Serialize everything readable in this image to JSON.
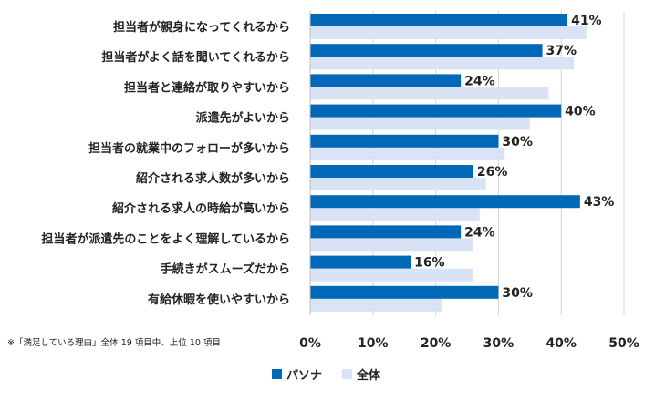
{
  "chart_data": {
    "type": "bar",
    "orientation": "horizontal",
    "categories": [
      "担当者が親身になってくれるから",
      "担当者がよく話を聞いてくれるから",
      "担当者と連絡が取りやすいから",
      "派遣先がよいから",
      "担当者の就業中のフォローが多いから",
      "紹介される求人数が多いから",
      "紹介される求人の時給が高いから",
      "担当者が派遣先のことをよく理解しているから",
      "手続きがスムーズだから",
      "有給休暇を使いやすいから"
    ],
    "series": [
      {
        "name": "パソナ",
        "color": "#0068b7",
        "values": [
          41,
          37,
          24,
          40,
          30,
          26,
          43,
          24,
          16,
          30
        ],
        "labels": [
          "41%",
          "37%",
          "24%",
          "40%",
          "30%",
          "26%",
          "43%",
          "24%",
          "16%",
          "30%"
        ]
      },
      {
        "name": "全体",
        "color": "#d9e3f5",
        "values": [
          44,
          42,
          38,
          35,
          31,
          28,
          27,
          26,
          26,
          21
        ]
      }
    ],
    "xlim": [
      0,
      50
    ],
    "xticks": [
      "0%",
      "10%",
      "20%",
      "30%",
      "40%",
      "50%"
    ],
    "grid": true,
    "legend_position": "bottom",
    "note": "※「満足している理由」全体 19 項目中、上位 10 項目"
  }
}
